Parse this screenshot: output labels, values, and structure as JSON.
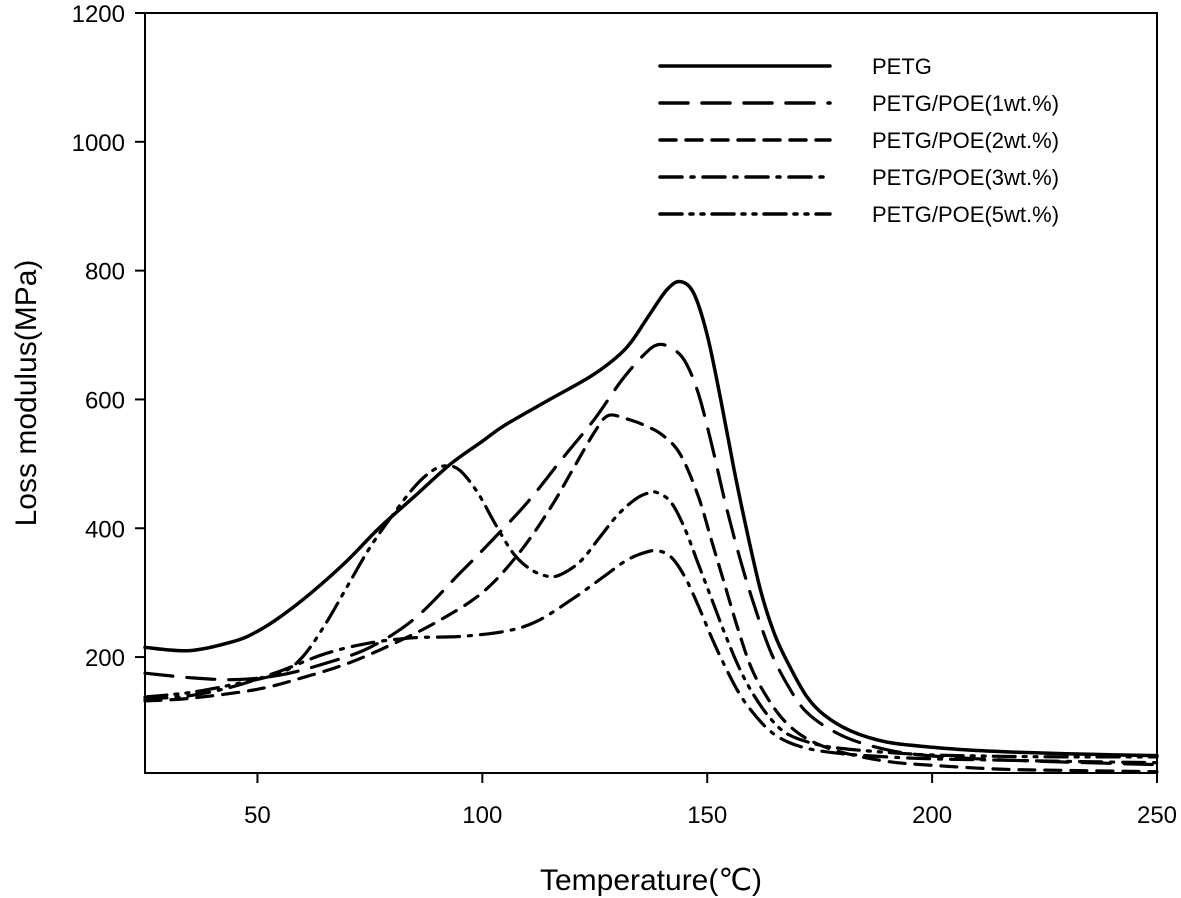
{
  "chart_data": {
    "type": "line",
    "title": "",
    "xlabel": "Temperature(℃)",
    "ylabel": "Loss modulus(MPa)",
    "xlim": [
      25,
      250
    ],
    "ylim": [
      20,
      1200
    ],
    "xticks": [
      50,
      100,
      150,
      200,
      250
    ],
    "yticks": [
      200,
      400,
      600,
      800,
      1000,
      1200
    ],
    "grid": false,
    "legend_position": "top-right",
    "series": [
      {
        "name": "PETG",
        "style": "solid",
        "x": [
          25,
          35,
          45,
          50,
          55,
          62,
          70,
          77,
          85,
          93,
          100,
          105,
          115,
          125,
          132,
          137,
          141,
          144,
          147,
          150,
          153,
          156,
          159,
          162,
          165,
          168,
          172,
          176,
          182,
          190,
          200,
          210,
          220,
          235,
          250
        ],
        "y": [
          215,
          210,
          225,
          240,
          262,
          300,
          350,
          400,
          450,
          500,
          535,
          560,
          600,
          640,
          680,
          730,
          770,
          783,
          765,
          700,
          600,
          490,
          390,
          300,
          235,
          190,
          140,
          110,
          85,
          68,
          60,
          55,
          52,
          49,
          47
        ]
      },
      {
        "name": "PETG/POE(1wt.%)",
        "style": "long-dash",
        "x": [
          25,
          35,
          45,
          55,
          65,
          75,
          85,
          95,
          102,
          110,
          118,
          125,
          131,
          136,
          139,
          142,
          145,
          148,
          151,
          154,
          157,
          160,
          164,
          168,
          172,
          178,
          185,
          195,
          210,
          230,
          250
        ],
        "y": [
          175,
          168,
          165,
          172,
          190,
          215,
          260,
          330,
          380,
          440,
          510,
          570,
          630,
          670,
          685,
          680,
          660,
          610,
          530,
          440,
          360,
          290,
          210,
          155,
          115,
          85,
          65,
          50,
          42,
          37,
          33
        ]
      },
      {
        "name": "PETG/POE(2wt.%)",
        "style": "short-dash",
        "x": [
          25,
          35,
          50,
          60,
          70,
          80,
          90,
          100,
          108,
          115,
          120,
          125,
          128,
          132,
          136,
          140,
          144,
          148,
          151,
          154,
          157,
          160,
          164,
          168,
          173,
          180,
          190,
          200,
          215,
          230,
          250
        ],
        "y": [
          132,
          136,
          150,
          168,
          190,
          220,
          255,
          300,
          360,
          430,
          490,
          550,
          575,
          570,
          560,
          545,
          515,
          450,
          380,
          310,
          240,
          180,
          130,
          95,
          70,
          52,
          38,
          32,
          26,
          24,
          22
        ]
      },
      {
        "name": "PETG/POE(3wt.%)",
        "style": "dash-dot",
        "x": [
          25,
          35,
          45,
          55,
          65,
          75,
          85,
          95,
          105,
          112,
          120,
          127,
          132,
          136,
          139,
          142,
          145,
          148,
          151,
          154,
          157,
          160,
          164,
          168,
          173,
          180,
          190,
          200,
          215,
          230,
          250
        ],
        "y": [
          135,
          140,
          155,
          178,
          205,
          222,
          230,
          232,
          240,
          255,
          290,
          325,
          350,
          362,
          365,
          355,
          325,
          280,
          230,
          185,
          145,
          115,
          85,
          68,
          57,
          50,
          45,
          42,
          40,
          38,
          36
        ]
      },
      {
        "name": "PETG/POE(5wt.%)",
        "style": "dash-dot-dot",
        "x": [
          25,
          35,
          45,
          55,
          60,
          65,
          70,
          75,
          80,
          85,
          89,
          92,
          95,
          99,
          103,
          107,
          111,
          115,
          118,
          122,
          126,
          130,
          134,
          137,
          139,
          142,
          145,
          148,
          151,
          154,
          157,
          160,
          164,
          168,
          174,
          180,
          190,
          200,
          215,
          230,
          250
        ],
        "y": [
          138,
          145,
          158,
          175,
          200,
          250,
          310,
          370,
          420,
          465,
          490,
          497,
          490,
          455,
          405,
          360,
          335,
          325,
          330,
          350,
          385,
          420,
          445,
          455,
          455,
          440,
          400,
          345,
          290,
          235,
          185,
          145,
          105,
          80,
          65,
          58,
          52,
          48,
          46,
          45,
          45
        ]
      }
    ]
  }
}
